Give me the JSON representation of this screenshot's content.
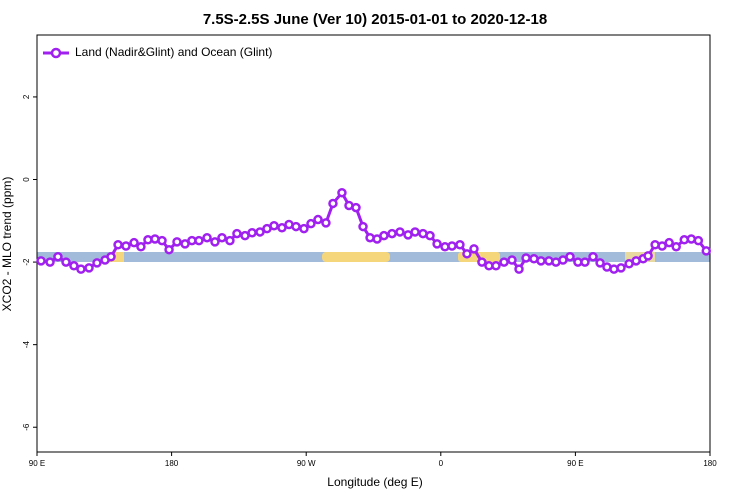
{
  "chart_data": {
    "type": "line",
    "title": "7.5S-2.5S June (Ver 10)   2015-01-01 to 2020-12-18",
    "x_label": "Longitude (deg E)",
    "y_label": "XCO2 - MLO trend (ppm)",
    "legend": "top-left",
    "xlim": [
      90,
      540
    ],
    "xticks": [
      {
        "value": 90,
        "label": "90 E"
      },
      {
        "value": 180,
        "label": "180"
      },
      {
        "value": 270,
        "label": "90 W"
      },
      {
        "value": 360,
        "label": "0"
      },
      {
        "value": 450,
        "label": "90 E"
      },
      {
        "value": 540,
        "label": "180"
      }
    ],
    "ylim": [
      -6.6,
      3.5
    ],
    "yticks": [
      2,
      0,
      -2,
      -4,
      -6
    ],
    "x": [
      92.7,
      98.7,
      104.0,
      109.4,
      114.7,
      119.4,
      124.8,
      130.1,
      135.5,
      139.5,
      144.2,
      149.5,
      154.9,
      159.5,
      164.2,
      168.9,
      173.6,
      178.3,
      183.6,
      189.0,
      193.6,
      198.3,
      203.7,
      209.0,
      213.7,
      219.0,
      223.7,
      229.1,
      233.8,
      239.1,
      243.8,
      248.5,
      253.8,
      258.5,
      263.2,
      268.5,
      273.2,
      277.9,
      283.2,
      287.9,
      293.9,
      298.6,
      303.3,
      308.0,
      312.7,
      317.4,
      322.0,
      327.4,
      332.7,
      338.1,
      342.8,
      348.1,
      352.8,
      357.5,
      362.8,
      367.5,
      372.8,
      377.5,
      382.2,
      387.5,
      392.2,
      396.9,
      402.3,
      407.6,
      412.3,
      417.0,
      422.3,
      427.0,
      432.3,
      437.0,
      441.7,
      446.4,
      451.7,
      456.4,
      461.8,
      466.5,
      471.1,
      475.8,
      480.5,
      485.9,
      490.6,
      495.3,
      498.6,
      503.3,
      508.0,
      512.7,
      517.4,
      522.8,
      527.5,
      532.2,
      537.5
    ],
    "series": [
      {
        "name": "Land (Nadir&Glint) and Ocean (Glint)",
        "color": "#a020f0",
        "values": [
          -1.97,
          -2.0,
          -1.87,
          -2.0,
          -2.09,
          -2.17,
          -2.14,
          -2.02,
          -1.95,
          -1.87,
          -1.58,
          -1.61,
          -1.53,
          -1.63,
          -1.46,
          -1.44,
          -1.48,
          -1.7,
          -1.51,
          -1.56,
          -1.48,
          -1.48,
          -1.41,
          -1.51,
          -1.41,
          -1.48,
          -1.31,
          -1.36,
          -1.29,
          -1.27,
          -1.19,
          -1.12,
          -1.17,
          -1.09,
          -1.14,
          -1.19,
          -1.07,
          -0.97,
          -1.05,
          -0.58,
          -0.32,
          -0.63,
          -0.68,
          -1.14,
          -1.41,
          -1.44,
          -1.36,
          -1.31,
          -1.27,
          -1.34,
          -1.27,
          -1.31,
          -1.36,
          -1.56,
          -1.63,
          -1.61,
          -1.58,
          -1.8,
          -1.68,
          -2.0,
          -2.09,
          -2.09,
          -2.0,
          -1.95,
          -2.17,
          -1.9,
          -1.92,
          -1.97,
          -1.97,
          -2.0,
          -1.95,
          -1.87,
          -2.0,
          -2.0,
          -1.87,
          -2.02,
          -2.12,
          -2.17,
          -2.14,
          -2.04,
          -1.97,
          -1.92,
          -1.85,
          -1.58,
          -1.61,
          -1.53,
          -1.63,
          -1.46,
          -1.44,
          -1.48,
          -1.73
        ]
      }
    ]
  }
}
